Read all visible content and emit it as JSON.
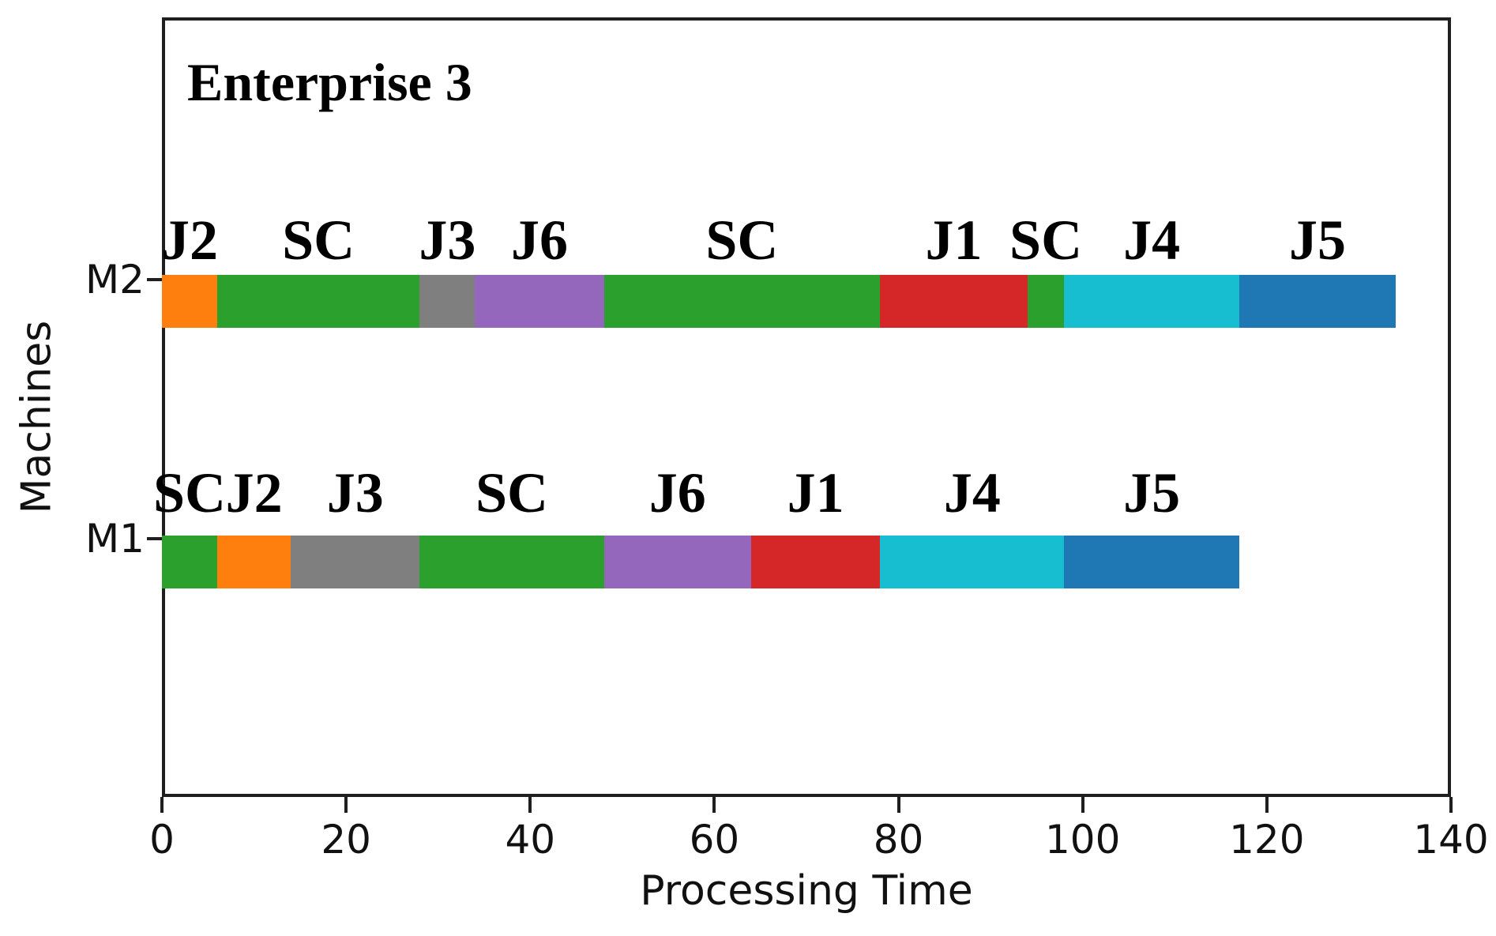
{
  "chart_data": {
    "type": "gantt",
    "title": "Enterprise 3",
    "xlabel": "Processing Time",
    "ylabel": "Machines",
    "xlim": [
      0,
      140
    ],
    "x_ticks": [
      0,
      20,
      40,
      60,
      80,
      100,
      120,
      140
    ],
    "grid": false,
    "legend": "none",
    "colors": {
      "J1": "#d62728",
      "J2": "#ff7f0e",
      "J3": "#7f7f7f",
      "J4": "#17becf",
      "J5": "#1f77b4",
      "J6": "#9467bd",
      "SC": "#2ca02c"
    },
    "machines": [
      {
        "name": "M2",
        "segments": [
          {
            "label": "J2",
            "start": 0,
            "end": 6
          },
          {
            "label": "SC",
            "start": 6,
            "end": 28
          },
          {
            "label": "J3",
            "start": 28,
            "end": 34
          },
          {
            "label": "J6",
            "start": 34,
            "end": 48
          },
          {
            "label": "SC",
            "start": 48,
            "end": 78
          },
          {
            "label": "J1",
            "start": 78,
            "end": 94
          },
          {
            "label": "SC",
            "start": 94,
            "end": 98
          },
          {
            "label": "J4",
            "start": 98,
            "end": 117
          },
          {
            "label": "J5",
            "start": 117,
            "end": 134
          }
        ]
      },
      {
        "name": "M1",
        "segments": [
          {
            "label": "SC",
            "start": 0,
            "end": 6
          },
          {
            "label": "J2",
            "start": 6,
            "end": 14
          },
          {
            "label": "J3",
            "start": 14,
            "end": 28
          },
          {
            "label": "SC",
            "start": 28,
            "end": 48
          },
          {
            "label": "J6",
            "start": 48,
            "end": 64
          },
          {
            "label": "J1",
            "start": 64,
            "end": 78
          },
          {
            "label": "J4",
            "start": 78,
            "end": 98
          },
          {
            "label": "J5",
            "start": 98,
            "end": 117
          }
        ]
      }
    ]
  }
}
